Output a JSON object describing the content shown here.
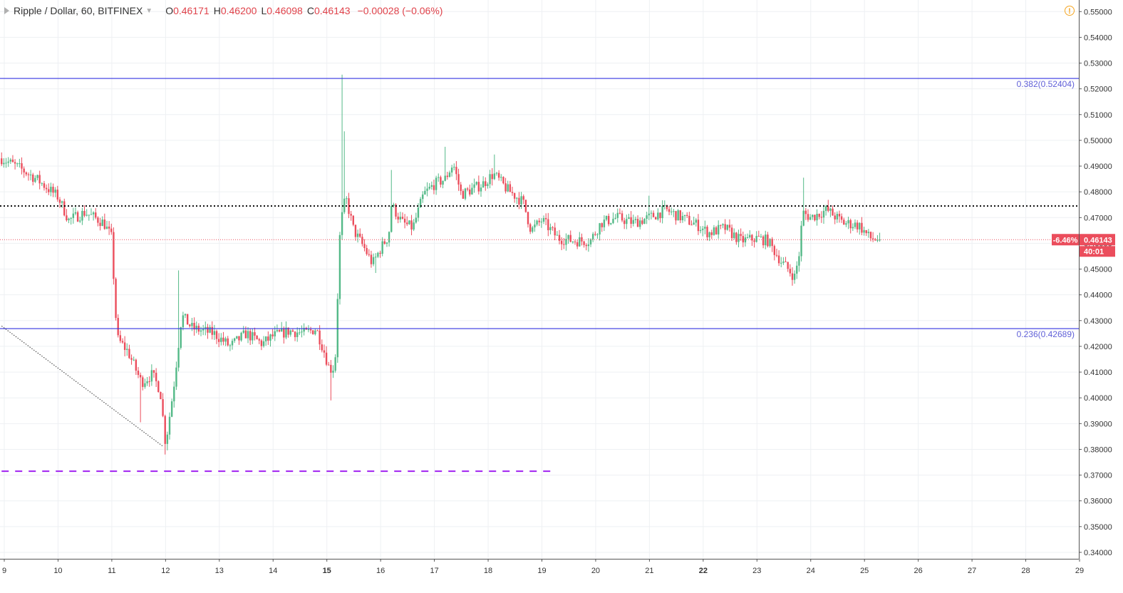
{
  "legend": {
    "symbol": "Ripple / Dollar, 60, BITFINEX",
    "open_label": "O",
    "open": "0.46171",
    "high_label": "H",
    "high": "0.46200",
    "low_label": "L",
    "low": "0.46098",
    "close_label": "C",
    "close": "0.46143",
    "change": "−0.00028 (−0.06%)"
  },
  "icons": {
    "collapse": "collapse-triangle-icon",
    "caret": "chevron-down-icon",
    "warning": "warning-icon"
  },
  "colors": {
    "up": "#53b987",
    "down": "#eb4d5c",
    "fib_line": "#3434e0",
    "fib_text": "#6060d8",
    "support": "#a020f0",
    "price_tag": "#eb4d5c"
  },
  "chart_data": {
    "type": "candlestick",
    "ylim": [
      0.3375,
      0.5545
    ],
    "y_ticks": [
      "0.55000",
      "0.54000",
      "0.53000",
      "0.52000",
      "0.51000",
      "0.50000",
      "0.49000",
      "0.48000",
      "0.47000",
      "0.46000",
      "0.45000",
      "0.44000",
      "0.43000",
      "0.42000",
      "0.41000",
      "0.40000",
      "0.39000",
      "0.38000",
      "0.37000",
      "0.36000",
      "0.35000",
      "0.34000"
    ],
    "x_ticks": [
      {
        "label": "9",
        "d": 9,
        "bold": false
      },
      {
        "label": "10",
        "d": 10,
        "bold": false
      },
      {
        "label": "11",
        "d": 11,
        "bold": false
      },
      {
        "label": "12",
        "d": 12,
        "bold": false
      },
      {
        "label": "13",
        "d": 13,
        "bold": false
      },
      {
        "label": "14",
        "d": 14,
        "bold": false
      },
      {
        "label": "15",
        "d": 15,
        "bold": true
      },
      {
        "label": "16",
        "d": 16,
        "bold": false
      },
      {
        "label": "17",
        "d": 17,
        "bold": false
      },
      {
        "label": "18",
        "d": 18,
        "bold": false
      },
      {
        "label": "19",
        "d": 19,
        "bold": false
      },
      {
        "label": "20",
        "d": 20,
        "bold": false
      },
      {
        "label": "21",
        "d": 21,
        "bold": false
      },
      {
        "label": "22",
        "d": 22,
        "bold": true
      },
      {
        "label": "23",
        "d": 23,
        "bold": false
      },
      {
        "label": "24",
        "d": 24,
        "bold": false
      },
      {
        "label": "25",
        "d": 25,
        "bold": false
      },
      {
        "label": "26",
        "d": 26,
        "bold": false
      },
      {
        "label": "27",
        "d": 27,
        "bold": false
      },
      {
        "label": "28",
        "d": 28,
        "bold": false
      },
      {
        "label": "29",
        "d": 29,
        "bold": false
      }
    ],
    "path": [
      [
        8.95,
        0.493
      ],
      [
        9.3,
        0.489
      ],
      [
        9.6,
        0.485
      ],
      [
        10.0,
        0.478
      ],
      [
        10.2,
        0.469
      ],
      [
        10.5,
        0.472
      ],
      [
        10.85,
        0.468
      ],
      [
        11.0,
        0.462
      ],
      [
        11.05,
        0.44
      ],
      [
        11.1,
        0.423
      ],
      [
        11.3,
        0.418
      ],
      [
        11.55,
        0.406
      ],
      [
        11.75,
        0.409
      ],
      [
        11.9,
        0.403
      ],
      [
        12.0,
        0.382
      ],
      [
        12.15,
        0.404
      ],
      [
        12.3,
        0.432
      ],
      [
        12.5,
        0.427
      ],
      [
        12.7,
        0.426
      ],
      [
        12.9,
        0.425
      ],
      [
        13.2,
        0.42
      ],
      [
        13.5,
        0.425
      ],
      [
        13.8,
        0.421
      ],
      [
        14.0,
        0.424
      ],
      [
        14.3,
        0.426
      ],
      [
        14.6,
        0.425
      ],
      [
        14.8,
        0.427
      ],
      [
        14.95,
        0.418
      ],
      [
        15.05,
        0.411
      ],
      [
        15.15,
        0.412
      ],
      [
        15.25,
        0.467
      ],
      [
        15.35,
        0.478
      ],
      [
        15.5,
        0.465
      ],
      [
        15.7,
        0.458
      ],
      [
        15.85,
        0.452
      ],
      [
        16.0,
        0.458
      ],
      [
        16.15,
        0.463
      ],
      [
        16.2,
        0.475
      ],
      [
        16.4,
        0.468
      ],
      [
        16.6,
        0.466
      ],
      [
        16.8,
        0.479
      ],
      [
        17.0,
        0.483
      ],
      [
        17.2,
        0.485
      ],
      [
        17.35,
        0.491
      ],
      [
        17.5,
        0.479
      ],
      [
        17.7,
        0.481
      ],
      [
        17.9,
        0.483
      ],
      [
        18.1,
        0.487
      ],
      [
        18.35,
        0.481
      ],
      [
        18.65,
        0.476
      ],
      [
        18.8,
        0.465
      ],
      [
        19.0,
        0.469
      ],
      [
        19.3,
        0.462
      ],
      [
        19.6,
        0.461
      ],
      [
        19.9,
        0.461
      ],
      [
        20.1,
        0.468
      ],
      [
        20.4,
        0.47
      ],
      [
        20.7,
        0.468
      ],
      [
        21.0,
        0.47
      ],
      [
        21.3,
        0.473
      ],
      [
        21.6,
        0.47
      ],
      [
        21.9,
        0.467
      ],
      [
        22.1,
        0.464
      ],
      [
        22.4,
        0.466
      ],
      [
        22.7,
        0.461
      ],
      [
        23.0,
        0.462
      ],
      [
        23.2,
        0.461
      ],
      [
        23.45,
        0.453
      ],
      [
        23.7,
        0.447
      ],
      [
        23.78,
        0.455
      ],
      [
        23.85,
        0.472
      ],
      [
        24.0,
        0.47
      ],
      [
        24.3,
        0.473
      ],
      [
        24.6,
        0.468
      ],
      [
        24.9,
        0.467
      ],
      [
        25.1,
        0.462
      ],
      [
        25.3,
        0.4614
      ]
    ],
    "fib_levels": [
      {
        "ratio": "0.382",
        "price": 0.52404,
        "label": "0.382(0.52404)"
      },
      {
        "ratio": "0.236",
        "price": 0.42689,
        "label": "0.236(0.42689)"
      }
    ],
    "resistance_dotted": 0.4745,
    "support_dashed": {
      "price": 0.3715,
      "from_day": 8.95,
      "to_day": 19.25
    },
    "trend_line": [
      {
        "d": 8.95,
        "p": 0.4279
      },
      {
        "d": 11.95,
        "p": 0.3812
      }
    ],
    "last_price": 0.46143,
    "price_tag": {
      "change": "-6.46%",
      "price": "0.46143",
      "countdown": "40:01"
    }
  }
}
